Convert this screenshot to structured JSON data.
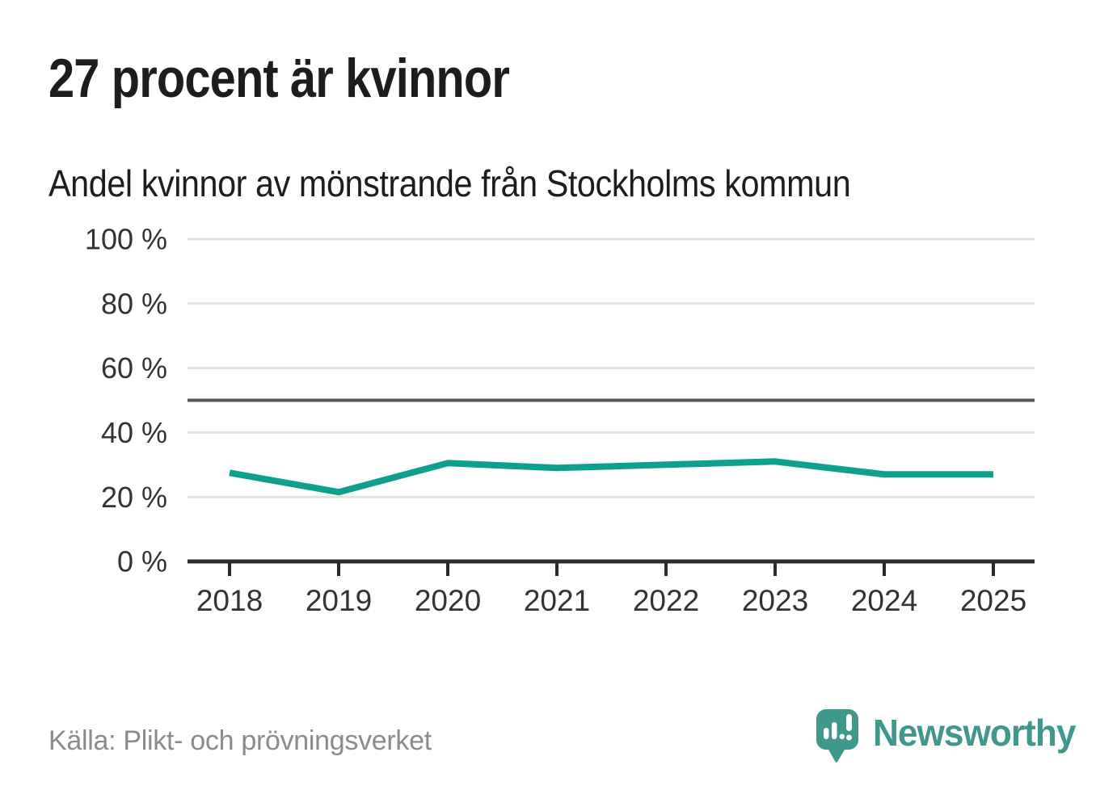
{
  "title": "27 procent är kvinnor",
  "subtitle": "Andel kvinnor av mönstrande från Stockholms kommun",
  "source": {
    "label": "Källa: Plikt- och prövningsverket"
  },
  "logo": {
    "text": "Newsworthy",
    "icon": "newsworthy-speech-bubble-bar-chart-icon"
  },
  "colors": {
    "line": "#0ea08f",
    "grid": "#e2e2e2",
    "reference_line": "#58585a",
    "axis": "#2b2b2b",
    "tick_label": "#333333",
    "title_text": "#1d1d1b",
    "source_text": "#8b8b8b",
    "logo": "#40988d",
    "background": "#ffffff"
  },
  "chart_data": {
    "type": "line",
    "title": "27 procent är kvinnor",
    "subtitle": "Andel kvinnor av mönstrande från Stockholms kommun",
    "x": [
      "2018",
      "2019",
      "2020",
      "2021",
      "2022",
      "2023",
      "2024",
      "2025"
    ],
    "series": [
      {
        "name": "Andel kvinnor av mönstrande från Stockholms kommun",
        "values": [
          27.5,
          21.5,
          30.5,
          29,
          30,
          31,
          27,
          27
        ]
      }
    ],
    "unit": "%",
    "xlabel": "",
    "ylabel": "",
    "ylim": [
      0,
      100
    ],
    "yticks": [
      0,
      20,
      40,
      60,
      80,
      100
    ],
    "ytick_suffix": " %",
    "reference_line": {
      "value": 50
    },
    "grid": true,
    "legend": false
  }
}
